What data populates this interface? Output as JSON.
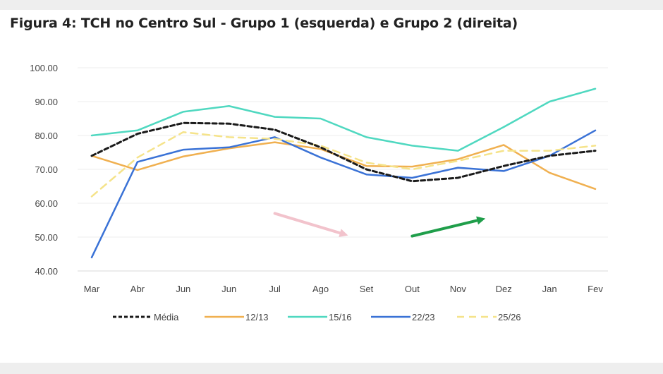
{
  "chart_data": {
    "type": "line",
    "title": "Figura 4:  TCH no Centro Sul - Grupo 1 (esquerda) e Grupo 2 (direita)",
    "xlabel": "",
    "ylabel": "",
    "categories": [
      "Mar",
      "Abr",
      "Jun",
      "Jun",
      "Jul",
      "Ago",
      "Set",
      "Out",
      "Nov",
      "Dez",
      "Jan",
      "Fev"
    ],
    "ylim": [
      40,
      100
    ],
    "yticks": [
      "40.00",
      "50.00",
      "60.00",
      "70.00",
      "80.00",
      "90.00",
      "100.00"
    ],
    "grid": "horizontal",
    "legend_position": "bottom",
    "series": [
      {
        "name": "Média",
        "color": "#1a1a1a",
        "style": "dashed-bold",
        "values": [
          74.0,
          80.5,
          83.7,
          83.5,
          81.7,
          76.5,
          70.0,
          66.5,
          67.5,
          71.0,
          74.0,
          75.5
        ]
      },
      {
        "name": "12/13",
        "color": "#f0b050",
        "style": "solid",
        "values": [
          74.0,
          69.8,
          73.8,
          76.2,
          78.0,
          76.0,
          71.0,
          70.8,
          73.0,
          77.2,
          69.0,
          64.2
        ]
      },
      {
        "name": "15/16",
        "color": "#4fd8c0",
        "style": "solid",
        "values": [
          80.0,
          81.5,
          87.0,
          88.7,
          85.5,
          85.0,
          79.5,
          77.0,
          75.5,
          82.5,
          90.0,
          93.8
        ]
      },
      {
        "name": "22/23",
        "color": "#3a72d6",
        "style": "solid",
        "values": [
          44.0,
          72.2,
          75.8,
          76.5,
          79.5,
          73.5,
          68.5,
          67.5,
          70.5,
          69.5,
          74.0,
          81.5
        ]
      },
      {
        "name": "25/26",
        "color": "#f5e38a",
        "style": "dashed",
        "values": [
          62.0,
          73.5,
          81.0,
          79.5,
          79.0,
          77.0,
          72.0,
          70.0,
          72.5,
          75.5,
          75.5,
          77.0
        ]
      }
    ],
    "annotations": [
      {
        "type": "arrow",
        "color": "#f2c3cc",
        "from": {
          "x": 4.0,
          "y": 57.0
        },
        "to": {
          "x": 5.6,
          "y": 50.5
        }
      },
      {
        "type": "arrow",
        "color": "#1f9e4a",
        "from": {
          "x": 7.0,
          "y": 50.3
        },
        "to": {
          "x": 8.6,
          "y": 55.5
        }
      }
    ]
  }
}
